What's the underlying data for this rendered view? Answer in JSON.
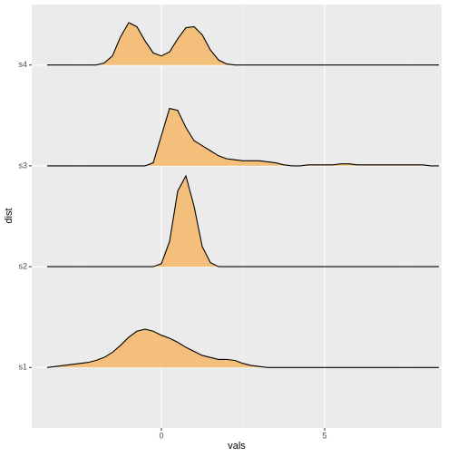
{
  "chart_data": {
    "type": "ridgeline",
    "x_label": "vals",
    "y_label": "dist",
    "categories": [
      "s1",
      "s2",
      "s3",
      "s4"
    ],
    "x": [
      -3.5,
      -3.25,
      -3,
      -2.75,
      -2.5,
      -2.25,
      -2,
      -1.75,
      -1.5,
      -1.25,
      -1,
      -0.75,
      -0.5,
      -0.25,
      0,
      0.25,
      0.5,
      0.75,
      1,
      1.25,
      1.5,
      1.75,
      2,
      2.25,
      2.5,
      2.75,
      3,
      3.25,
      3.5,
      3.75,
      4,
      4.25,
      4.5,
      4.75,
      5,
      5.25,
      5.5,
      5.75,
      6,
      6.25,
      6.5,
      6.75,
      7,
      7.25,
      7.5,
      7.75,
      8,
      8.25,
      8.5
    ],
    "series": [
      {
        "name": "s1",
        "color": "#f3bd74",
        "values": [
          0,
          0.01,
          0.02,
          0.03,
          0.04,
          0.05,
          0.07,
          0.1,
          0.15,
          0.22,
          0.3,
          0.36,
          0.38,
          0.36,
          0.32,
          0.29,
          0.25,
          0.2,
          0.16,
          0.12,
          0.1,
          0.08,
          0.08,
          0.07,
          0.04,
          0.02,
          0.01,
          0,
          0,
          0,
          0,
          0,
          0,
          0,
          0,
          0,
          0,
          0,
          0,
          0,
          0,
          0,
          0,
          0,
          0,
          0,
          0,
          0,
          0
        ]
      },
      {
        "name": "s2",
        "color": "#f3bd74",
        "values": [
          0,
          0,
          0,
          0,
          0,
          0,
          0,
          0,
          0,
          0,
          0,
          0,
          0,
          0,
          0.03,
          0.25,
          0.75,
          0.9,
          0.6,
          0.2,
          0.04,
          0,
          0,
          0,
          0,
          0,
          0,
          0,
          0,
          0,
          0,
          0,
          0,
          0,
          0,
          0,
          0,
          0,
          0,
          0,
          0,
          0,
          0,
          0,
          0,
          0,
          0,
          0,
          0
        ]
      },
      {
        "name": "s3",
        "color": "#f3bd74",
        "values": [
          0,
          0,
          0,
          0,
          0,
          0,
          0,
          0,
          0,
          0,
          0,
          0,
          0,
          0.03,
          0.3,
          0.57,
          0.55,
          0.38,
          0.25,
          0.2,
          0.15,
          0.1,
          0.07,
          0.06,
          0.05,
          0.05,
          0.05,
          0.04,
          0.03,
          0.01,
          0,
          0,
          0.01,
          0.01,
          0.01,
          0.01,
          0.02,
          0.02,
          0.01,
          0.01,
          0.01,
          0.01,
          0.01,
          0.01,
          0.01,
          0.01,
          0.01,
          0,
          0
        ]
      },
      {
        "name": "s4",
        "color": "#f3bd74",
        "values": [
          0,
          0,
          0,
          0,
          0,
          0,
          0,
          0.02,
          0.09,
          0.28,
          0.42,
          0.38,
          0.24,
          0.12,
          0.09,
          0.13,
          0.26,
          0.37,
          0.38,
          0.3,
          0.15,
          0.05,
          0.01,
          0,
          0,
          0,
          0,
          0,
          0,
          0,
          0,
          0,
          0,
          0,
          0,
          0,
          0,
          0,
          0,
          0,
          0,
          0,
          0,
          0,
          0,
          0,
          0,
          0,
          0
        ]
      }
    ],
    "xlim": [
      -3.97,
      8.58
    ],
    "xticks": [
      0,
      5
    ],
    "xminorticks": [
      -2.5,
      2.5,
      7.5
    ],
    "ylim": [
      0.4,
      4.6
    ],
    "grid": true
  }
}
